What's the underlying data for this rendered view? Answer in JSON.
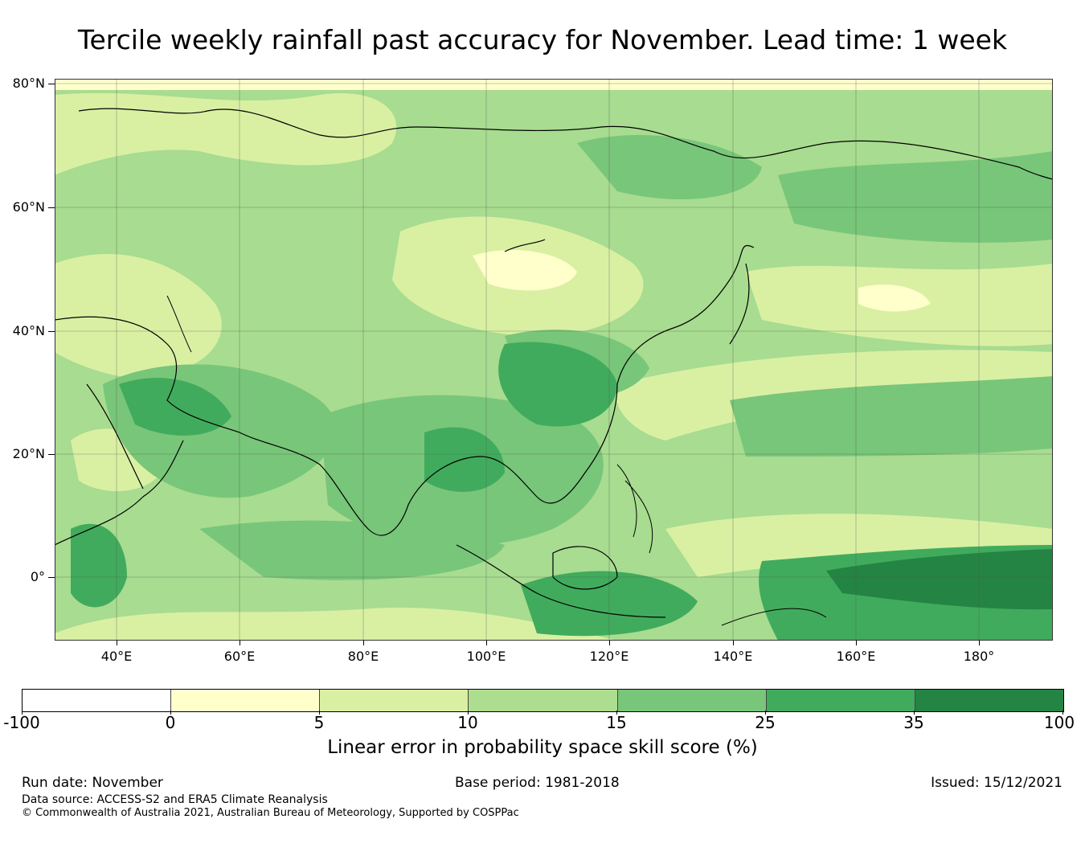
{
  "title": "Tercile weekly rainfall past accuracy for November. Lead time: 1 week",
  "map": {
    "lat_labels": [
      "80°N",
      "60°N",
      "40°N",
      "20°N",
      "0°"
    ],
    "lon_labels": [
      "40°E",
      "60°E",
      "80°E",
      "100°E",
      "120°E",
      "140°E",
      "160°E",
      "180°"
    ],
    "lon_range": [
      30,
      192
    ],
    "lat_range": [
      -10,
      81
    ]
  },
  "colorbar": {
    "title": "Linear error in probability space skill score (%)",
    "tick_labels": [
      "-100",
      "0",
      "5",
      "10",
      "15",
      "25",
      "35",
      "100"
    ],
    "colors": [
      "#ffffff",
      "#ffffcc",
      "#d9f0a3",
      "#addd8e",
      "#78c679",
      "#41ab5d",
      "#238443"
    ]
  },
  "footer": {
    "run_date": "Run date: November",
    "base_period": "Base period: 1981-2018",
    "issued": "Issued: 15/12/2021",
    "data_source": "Data source: ACCESS-S2 and ERA5 Climate Reanalysis",
    "copyright": "© Commonwealth of Australia 2021, Australian Bureau of Meteorology, Supported by COSPPac"
  }
}
